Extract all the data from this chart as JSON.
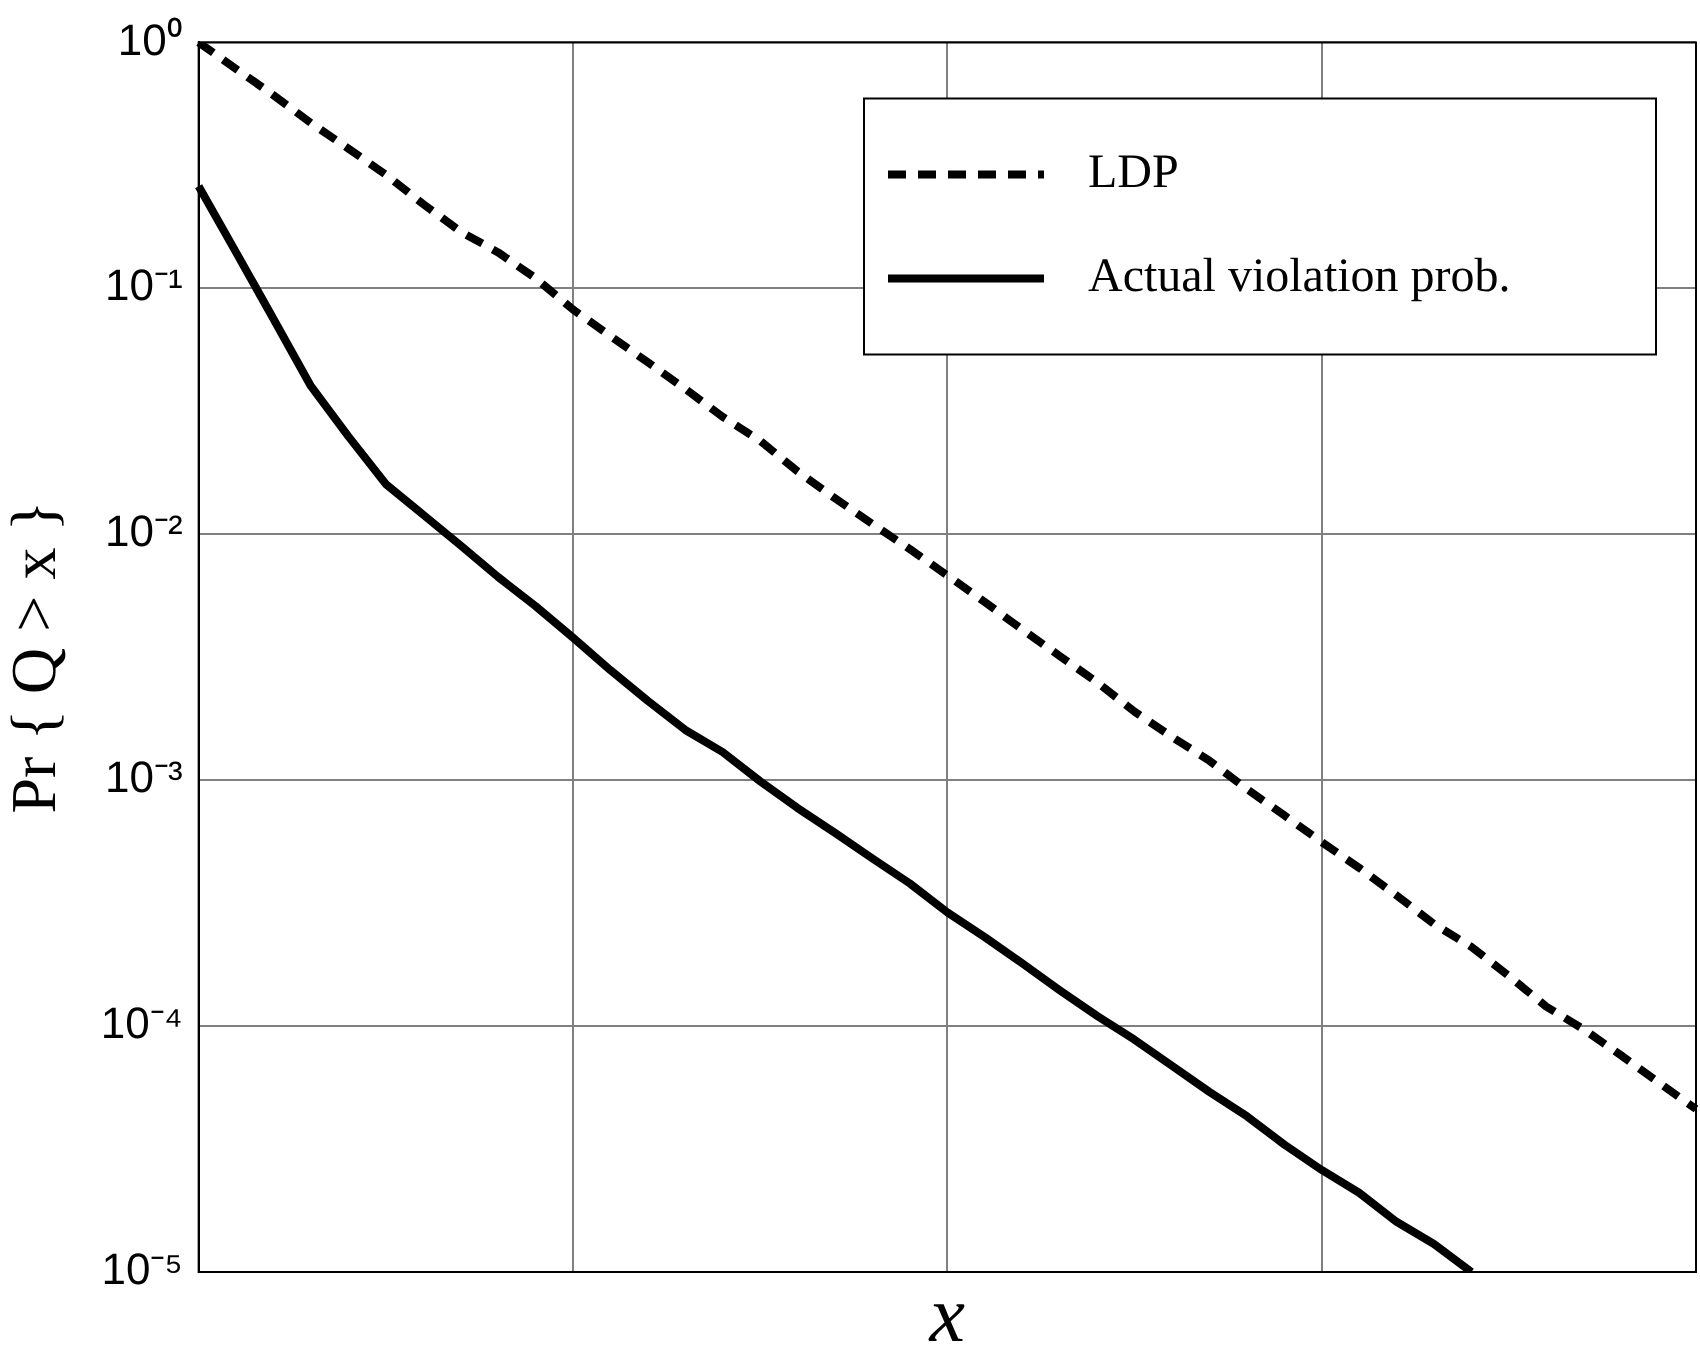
{
  "chart_data": {
    "type": "line",
    "xlabel": "x",
    "ylabel": "Pr { Q > x }",
    "log": "y",
    "ylim": [
      1e-05,
      1
    ],
    "yticks": [
      {
        "value": 1,
        "label": "10⁰"
      },
      {
        "value": 0.1,
        "label": "10⁻¹"
      },
      {
        "value": 0.01,
        "label": "10⁻²"
      },
      {
        "value": 0.001,
        "label": "10⁻³"
      },
      {
        "value": 0.0001,
        "label": "10⁻⁴"
      },
      {
        "value": 1e-05,
        "label": "10⁻⁵"
      }
    ],
    "categories": [
      null,
      null,
      null,
      null,
      null,
      null,
      null,
      null,
      null,
      null,
      null,
      null,
      null,
      null,
      null,
      null,
      null,
      null,
      null,
      null,
      null,
      null,
      null,
      null,
      null,
      null,
      null,
      null,
      null,
      null,
      null,
      null,
      null,
      null,
      null,
      null,
      null,
      null,
      null,
      null,
      null
    ],
    "tick_labels": "y",
    "grid": true,
    "legend": "top right",
    "marker": "none",
    "series": [
      {
        "name": "LDP",
        "color": "#000000",
        "line_style": "dashed",
        "values": [
          1,
          0.78,
          0.61,
          0.47,
          0.37,
          0.29,
          0.22,
          0.17,
          0.14,
          0.11,
          0.082,
          0.064,
          0.05,
          0.039,
          0.03,
          0.024,
          0.018,
          0.014,
          0.011,
          0.0087,
          0.0068,
          0.0053,
          0.0041,
          0.0032,
          0.0025,
          0.0019,
          0.0015,
          0.0012,
          0.00092,
          0.00072,
          0.00056,
          0.00044,
          0.00034,
          0.00026,
          0.00021,
          0.00016,
          0.00012,
          9.7e-05,
          7.6e-05,
          5.9e-05,
          4.6e-05
        ]
      },
      {
        "name": "Actual violation prob.",
        "color": "#000000",
        "line_style": "solid",
        "values": [
          0.26,
          0.14,
          0.075,
          0.04,
          0.025,
          0.016,
          0.012,
          0.009,
          0.0067,
          0.0051,
          0.0038,
          0.0028,
          0.0021,
          0.0016,
          0.0013,
          0.00099,
          0.00077,
          0.00061,
          0.00048,
          0.00038,
          0.00029,
          0.00023,
          0.00018,
          0.00014,
          0.00011,
          8.8e-05,
          6.9e-05,
          5.4e-05,
          4.3e-05,
          3.3e-05,
          2.6e-05,
          2.1e-05,
          1.6e-05,
          1.3e-05,
          1e-05,
          null,
          null,
          null,
          null,
          null,
          null
        ]
      }
    ]
  }
}
